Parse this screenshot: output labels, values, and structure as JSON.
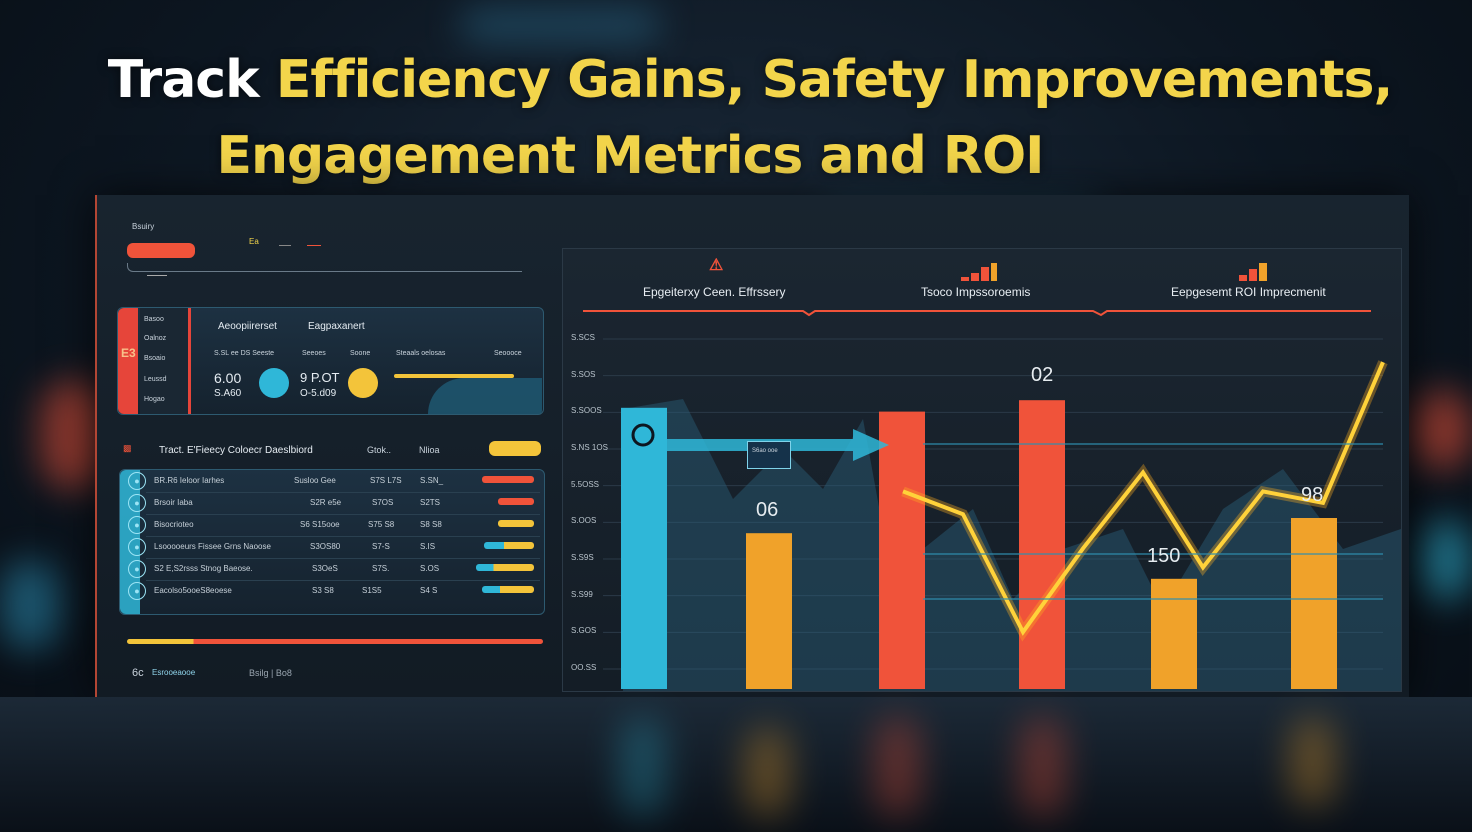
{
  "headline": {
    "line1_white": "Track",
    "line1_yellow": "Efficiency Gains, Safety Improvements,",
    "line2": "Engagement Metrics and ROI"
  },
  "left_panel": {
    "top_label": "Bsuiry",
    "top_mini": "Ea",
    "card": {
      "side_items": [
        "Basoo",
        "Oalnoz",
        "Bsoaio",
        "Leussd",
        "Hogao"
      ],
      "side_badge": "E3",
      "col1_title": "Aeoopiirerset",
      "col2_title": "Eagpaxanert",
      "sub_labels": [
        "S.SL ee DS Seeste",
        "Seeoes",
        "Soone",
        "Steaals oelosas",
        "Seoooce"
      ],
      "value_a1": "6.00",
      "value_a2": "S.A60",
      "value_b1": "9 P.OT",
      "value_b2": "O-5.d09"
    },
    "dashboard_title": "Tract. E'Fieecy Coloecr Daeslbiord",
    "dashboard_col2": "Gtok..",
    "dashboard_col3": "Nlioa",
    "table_rows": [
      {
        "name": "BR.R6 Ieloor Iarhes",
        "c1": "Susloo Gee",
        "c2": "S7S L7S",
        "c3": "S.SN_"
      },
      {
        "name": "Brsoir Iaba",
        "c1": "S2R e5e",
        "c2": "S7OS",
        "c3": "S2TS"
      },
      {
        "name": "Bisocrioteo",
        "c1": "S6 S15ooe",
        "c2": "S75 S8",
        "c3": "S8 S8"
      },
      {
        "name": "Lsooooeurs Fissee Grns Naoose",
        "c1": "S3OS80",
        "c2": "S7-S",
        "c3": "S.IS"
      },
      {
        "name": "S2 E,S2rsss Stnog Baeose.",
        "c1": "S3OeS",
        "c2": "S7S.",
        "c3": "S.OS"
      },
      {
        "name": "Eacolso5ooeS8eoese",
        "c1": "S3 S8",
        "c2": "S1S5",
        "c3": "S4 S"
      }
    ],
    "footer_left": "6c",
    "footer_mid": "Esrooeaooe",
    "footer_right": "Bsilg | Bo8"
  },
  "chart_data": {
    "type": "bar",
    "panel_titles": [
      "Epgeiterxy Ceen. Effrssery",
      "Tsoco Impssoroemis",
      "Eepgesemt ROI Imprecmenit"
    ],
    "y_tick_labels": [
      "S.SCS",
      "S.SOS",
      "S.SOOS",
      "S.NS 1OS",
      "5.5OSS",
      "S.OOS",
      "S.S9S",
      "S.S99",
      "S.GOS",
      "OO.SS"
    ],
    "bar_colors": [
      "#2fb7d8",
      "#f0a22a",
      "#f0533a",
      "#f0533a",
      "#f0a22a",
      "#f0a22a"
    ],
    "bar_values": [
      74,
      41,
      73,
      76,
      29,
      45
    ],
    "data_labels": [
      "",
      "06",
      "",
      "02",
      "150",
      "98"
    ],
    "line": [
      {
        "x": 1,
        "y": 52
      },
      {
        "x": 2,
        "y": 46
      },
      {
        "x": 3,
        "y": 15
      },
      {
        "x": 4,
        "y": 37
      },
      {
        "x": 5,
        "y": 57
      },
      {
        "x": 6,
        "y": 32
      },
      {
        "x": 7,
        "y": 52
      },
      {
        "x": 8,
        "y": 49
      },
      {
        "x": 9,
        "y": 86
      }
    ],
    "line_color": "#ffd23a",
    "small_box_text": "S6ao ooe"
  },
  "colors": {
    "accent_yellow": "#f3d54b",
    "accent_orange": "#f0533a",
    "accent_cyan": "#2fb7d8"
  }
}
